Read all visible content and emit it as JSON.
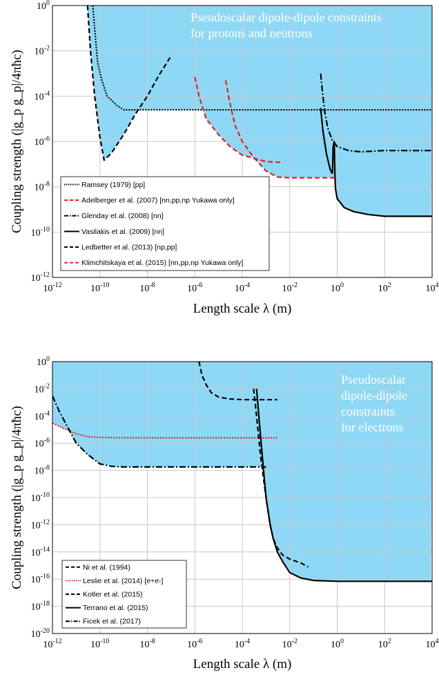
{
  "chart_data": [
    {
      "type": "line",
      "title_lines": [
        "Pseudoscalar dipole-dipole constraints",
        "for protons and neutrons"
      ],
      "xlabel": "Length scale λ (m)",
      "ylabel": "Coupling strength (|g_p g_p|/4πħc)",
      "x_scale": "log",
      "y_scale": "log",
      "xlim": [
        1e-12,
        10000
      ],
      "ylim": [
        1e-12,
        1
      ],
      "x_tick_exponents": [
        -12,
        -10,
        -8,
        -6,
        -4,
        -2,
        0,
        2,
        4
      ],
      "y_tick_exponents": [
        -12,
        -10,
        -8,
        -6,
        -4,
        -2,
        0
      ],
      "grid": true,
      "legend_position": "bottom-left",
      "fill_color": "#8fd8f5",
      "series": [
        {
          "name": "Ramsey (1979) [pp]",
          "color": "#000000",
          "dash": "dotted",
          "x": [
            5e-11,
            6e-11,
            8e-11,
            1.2e-10,
            2e-10,
            5e-10,
            1e-09,
            1e-05,
            0.001,
            0.1,
            10000
          ],
          "y": [
            1,
            0.1,
            0.003,
            0.0005,
            0.0001,
            4e-05,
            2.5e-05,
            2.5e-05,
            2.5e-05,
            2.5e-05,
            2.5e-05
          ]
        },
        {
          "name": "Adelberger et al. (2007) [nn,pp,np Yukawa only]",
          "color": "#e02020",
          "dash": "dashed",
          "x": [
            1e-06,
            1.5e-06,
            3e-06,
            1e-05,
            3e-05,
            0.0001,
            0.001,
            0.004,
            0.005
          ],
          "y": [
            0.0007,
            0.0001,
            1e-05,
            2e-06,
            6e-07,
            2.5e-07,
            1.3e-07,
            1.2e-07,
            1.2e-07
          ]
        },
        {
          "name": "Glenday et al. (2008) [nn]",
          "color": "#000000",
          "dash": "dashdot",
          "x": [
            0.2,
            0.25,
            0.3,
            0.4,
            0.6,
            1,
            3,
            10,
            100,
            10000
          ],
          "y": [
            0.001,
            0.0001,
            2e-05,
            4e-06,
            1.2e-06,
            6e-07,
            4e-07,
            3.5e-07,
            4e-07,
            4e-07
          ]
        },
        {
          "name": "Vasilakis et al. (2009) [nn]",
          "color": "#000000",
          "dash": "solid",
          "x": [
            0.2,
            0.25,
            0.35,
            0.5,
            0.6,
            0.63,
            0.68,
            0.75,
            0.8,
            0.85,
            1,
            2,
            5,
            20,
            100,
            10000
          ],
          "y": [
            3e-05,
            3e-06,
            3e-07,
            6e-08,
            4e-08,
            4e-08,
            6e-07,
            1e-06,
            3e-08,
            8e-09,
            3e-09,
            1.2e-09,
            8e-10,
            6e-10,
            5e-10,
            5e-10
          ]
        },
        {
          "name": "Ledbetter et al. (2013) [np,pp]",
          "color": "#000000",
          "dash": "dashed",
          "x": [
            3e-11,
            4e-11,
            6e-11,
            1e-10,
            1.5e-10,
            3e-10,
            1e-09,
            3e-09,
            1e-08,
            3e-08,
            1e-07
          ],
          "y": [
            1,
            0.01,
            0.0001,
            1.5e-06,
            1.5e-07,
            3e-07,
            2e-06,
            1.5e-05,
            0.0001,
            0.0008,
            0.006
          ]
        },
        {
          "name": "Klimchitskaya et al. (2015) [nn,pp,np Yukawa only]",
          "color": "#e02020",
          "dash": "dashed",
          "x": [
            2e-05,
            3e-05,
            5e-05,
            0.0001,
            0.0003,
            0.001,
            0.003,
            0.01,
            0.05,
            1
          ],
          "y": [
            0.0005,
            5e-05,
            5e-06,
            1e-06,
            2e-07,
            5e-08,
            2.7e-08,
            2.5e-08,
            2.5e-08,
            2.5e-08
          ]
        }
      ]
    },
    {
      "type": "line",
      "title_lines": [
        "Pseudoscalar",
        "dipole-dipole",
        "constraints",
        "for electrons"
      ],
      "xlabel": "Length scale λ (m)",
      "ylabel": "Coupling strength (|g_p g_p|/4πħc)",
      "x_scale": "log",
      "y_scale": "log",
      "xlim": [
        1e-12,
        10000
      ],
      "ylim": [
        1e-20,
        1
      ],
      "x_tick_exponents": [
        -12,
        -10,
        -8,
        -6,
        -4,
        -2,
        0,
        2,
        4
      ],
      "y_tick_exponents": [
        -20,
        -18,
        -16,
        -14,
        -12,
        -10,
        -8,
        -6,
        -4,
        -2,
        0
      ],
      "grid": true,
      "legend_position": "bottom-left",
      "fill_color": "#8fd8f5",
      "series": [
        {
          "name": "Ni et al. (1994)",
          "color": "#000000",
          "dash": "dashed",
          "x": [
            0.0003,
            0.0004,
            0.0006,
            0.001,
            0.0015,
            0.002,
            0.003,
            0.005,
            0.01,
            0.03,
            0.06
          ],
          "y": [
            0.01,
            0.0001,
            1e-07,
            1e-10,
            1e-12,
            1e-13,
            2e-14,
            6e-15,
            3e-15,
            1.5e-15,
            8e-16
          ]
        },
        {
          "name": "Leslie et al. (2014) [e+e-]",
          "color": "#e02020",
          "dash": "dotted",
          "x": [
            1e-12,
            3e-12,
            1e-11,
            3e-11,
            1e-10,
            3e-10,
            1e-09,
            0.003
          ],
          "y": [
            3e-05,
            1.2e-05,
            5e-06,
            3e-06,
            2.7e-06,
            2.6e-06,
            2.5e-06,
            2.5e-06
          ]
        },
        {
          "name": "Kotler et al. (2015)",
          "color": "#000000",
          "dash": "dashed",
          "x": [
            1.5e-06,
            2e-06,
            3e-06,
            5e-06,
            1e-05,
            3e-05,
            0.0001,
            0.003
          ],
          "y": [
            1,
            0.1,
            0.02,
            0.005,
            0.0025,
            0.0018,
            0.0016,
            0.0016
          ]
        },
        {
          "name": "Terrano et al. (2015)",
          "color": "#000000",
          "dash": "solid",
          "x": [
            0.0004,
            0.0005,
            0.0007,
            0.001,
            0.0015,
            0.002,
            0.003,
            0.005,
            0.01,
            0.03,
            0.1,
            1,
            10000
          ],
          "y": [
            0.01,
            0.0001,
            1e-07,
            1e-10,
            1e-12,
            1e-13,
            1e-14,
            2e-15,
            3e-16,
            1.2e-16,
            8e-17,
            7e-17,
            7e-17
          ]
        },
        {
          "name": "Ficek et al. (2017)",
          "color": "#000000",
          "dash": "dashdot",
          "x": [
            1e-12,
            2e-12,
            5e-12,
            1e-11,
            3e-11,
            1e-10,
            3e-10,
            1e-09,
            0.001
          ],
          "y": [
            0.003,
            0.0002,
            1e-05,
            1e-06,
            1.5e-07,
            3e-08,
            2e-08,
            1.8e-08,
            1.8e-08
          ]
        }
      ]
    }
  ]
}
